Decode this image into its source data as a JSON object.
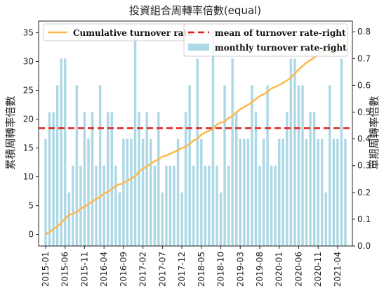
{
  "chart_data": {
    "type": "bar",
    "title": "投資組合周轉率倍數(equal)",
    "ylabel_left": "累積周轉率倍數",
    "ylabel_right": "單期周轉率倍數",
    "ylim_left": [
      -2,
      37
    ],
    "ylim_right": [
      0,
      0.84
    ],
    "yticks_left": [
      0,
      5,
      10,
      15,
      20,
      25,
      30,
      35
    ],
    "yticks_right": [
      0.0,
      0.1,
      0.2,
      0.3,
      0.4,
      0.5,
      0.6,
      0.7,
      0.8
    ],
    "x_tick_labels": [
      "2015-01",
      "2015-06",
      "2015-11",
      "2016-04",
      "2016-09",
      "2017-02",
      "2017-07",
      "2017-12",
      "2018-05",
      "2018-10",
      "2019-03",
      "2019-08",
      "2020-01",
      "2020-06",
      "2020-11",
      "2021-04"
    ],
    "x_tick_every": 5,
    "series": [
      {
        "name": "monthly turnover rate-right",
        "kind": "bar",
        "axis": "right",
        "color": "#add8e6",
        "values": [
          0.4,
          0.5,
          0.5,
          0.6,
          0.7,
          0.7,
          0.2,
          0.3,
          0.6,
          0.3,
          0.5,
          0.4,
          0.5,
          0.3,
          0.6,
          0.3,
          0.5,
          0.5,
          0.3,
          0.2,
          0.4,
          0.4,
          0.4,
          0.8,
          0.5,
          0.4,
          0.5,
          0.4,
          0.3,
          0.5,
          0.2,
          0.3,
          0.3,
          0.3,
          0.4,
          0.2,
          0.5,
          0.6,
          0.3,
          0.7,
          0.4,
          0.3,
          0.3,
          0.8,
          0.3,
          0.2,
          0.6,
          0.3,
          0.7,
          0.5,
          0.4,
          0.4,
          0.4,
          0.6,
          0.5,
          0.3,
          0.4,
          0.6,
          0.3,
          0.3,
          0.4,
          0.4,
          0.5,
          0.7,
          0.7,
          0.6,
          0.6,
          0.4,
          0.5,
          0.5,
          0.4,
          0.4,
          0.2,
          0.6,
          0.4,
          0.4,
          0.7,
          0.4
        ]
      },
      {
        "name": "Cumulative turnover rate",
        "kind": "line",
        "axis": "left",
        "color": "#ffb84d",
        "values": [
          0.0,
          0.4,
          0.9,
          1.4,
          2.0,
          2.7,
          3.4,
          3.6,
          3.9,
          4.5,
          4.8,
          5.3,
          5.7,
          6.2,
          6.5,
          7.1,
          7.4,
          7.9,
          8.4,
          8.7,
          8.9,
          9.3,
          9.7,
          10.1,
          10.9,
          11.4,
          11.8,
          12.3,
          12.7,
          13.0,
          13.5,
          13.7,
          14.0,
          14.3,
          14.6,
          15.0,
          15.2,
          15.7,
          16.3,
          16.6,
          17.3,
          17.7,
          18.0,
          18.3,
          19.1,
          19.4,
          19.6,
          20.2,
          20.5,
          21.2,
          21.7,
          22.1,
          22.5,
          22.9,
          23.5,
          24.0,
          24.3,
          24.7,
          25.3,
          25.6,
          25.9,
          26.3,
          26.7,
          27.2,
          27.9,
          28.6,
          29.2,
          29.8,
          30.2,
          30.7,
          31.2,
          31.6,
          32.0,
          32.2,
          32.8,
          33.2,
          33.6,
          34.3
        ]
      },
      {
        "name": "mean of turnover rate-right",
        "kind": "hline",
        "axis": "right",
        "color": "#e0201b",
        "value": 0.44
      }
    ],
    "legend": "top"
  }
}
